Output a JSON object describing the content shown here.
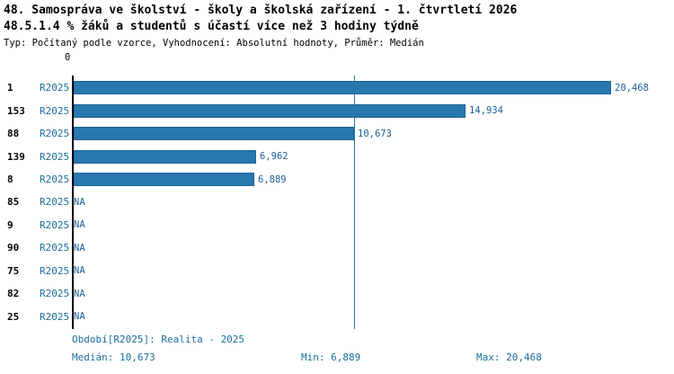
{
  "header": {
    "title": "48. Samospráva ve školství - školy a školská zařízení - 1. čtvrtletí 2026",
    "subtitle": "48.5.1.4 % žáků a studentů s účastí více než 3 hodiny týdně",
    "meta": "Typ: Počítaný podle vzorce, Vyhodnocení: Absolutní hodnoty, Průměr: Medián"
  },
  "chart_data": {
    "type": "bar",
    "orientation": "horizontal",
    "axis_zero_label": "0",
    "series_label": "R2025",
    "categories": [
      "1",
      "153",
      "88",
      "139",
      "8",
      "85",
      "9",
      "90",
      "75",
      "82",
      "25"
    ],
    "values": [
      20468,
      14934,
      10673,
      6962,
      6889,
      null,
      null,
      null,
      null,
      null,
      null
    ],
    "value_labels": [
      "20,468",
      "14,934",
      "10,673",
      "6,962",
      "6,889",
      "NA",
      "NA",
      "NA",
      "NA",
      "NA",
      "NA"
    ],
    "xlim": [
      0,
      21500
    ],
    "median_value": 10673,
    "bar_color": "#2878ae",
    "median_line_color": "#2878ae",
    "grid": false,
    "legend": "none"
  },
  "footer": {
    "period": "Období[R2025]: Realita - 2025",
    "median": "Medián: 10,673",
    "min": "Min: 6,889",
    "max": "Max: 20,468"
  }
}
